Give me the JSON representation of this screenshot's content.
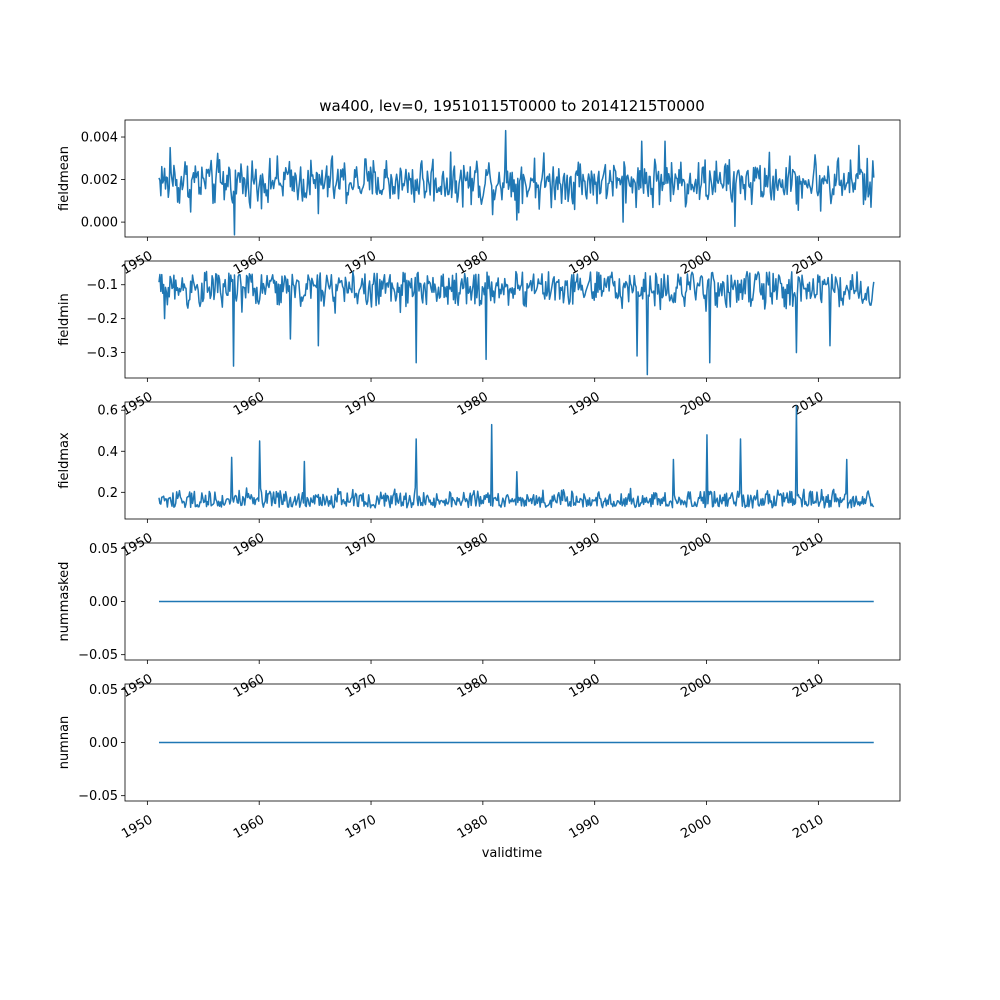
{
  "figure": {
    "title": "wa400, lev=0, 19510115T0000 to 20141215T0000",
    "xlabel": "validtime",
    "line_color": "#1f77b4"
  },
  "chart_data": [
    {
      "type": "line",
      "ylabel": "fieldmean",
      "x_start": "1951-01-15",
      "x_end": "2014-12-15",
      "xlim": [
        1948.0,
        2017.3
      ],
      "ylim": [
        -0.0007,
        0.0048
      ],
      "yticks": [
        0.0,
        0.002,
        0.004
      ],
      "ytick_labels": [
        "0.000",
        "0.002",
        "0.004"
      ],
      "xticks": [
        1950,
        1960,
        1970,
        1980,
        1990,
        2000,
        2010
      ],
      "xtick_labels": [
        "1950",
        "1960",
        "1970",
        "1980",
        "1990",
        "2000",
        "2010"
      ],
      "baseline": 0.0019,
      "spread": 0.00065,
      "spikes": [
        [
          1952.0,
          0.0035
        ],
        [
          1957.8,
          -0.0006
        ],
        [
          1965.3,
          0.0004
        ],
        [
          1982.0,
          0.0043
        ],
        [
          1983.0,
          0.0001
        ],
        [
          1992.5,
          0.0
        ],
        [
          1994.2,
          0.0038
        ],
        [
          1996.3,
          0.0038
        ],
        [
          2002.5,
          -0.0002
        ],
        [
          2013.6,
          0.0036
        ],
        [
          2014.7,
          0.0007
        ]
      ]
    },
    {
      "type": "line",
      "ylabel": "fieldmin",
      "x_start": "1951-01-15",
      "x_end": "2014-12-15",
      "xlim": [
        1948.0,
        2017.3
      ],
      "ylim": [
        -0.375,
        -0.03
      ],
      "yticks": [
        -0.3,
        -0.2,
        -0.1
      ],
      "ytick_labels": [
        "−0.3",
        "−0.2",
        "−0.1"
      ],
      "xticks": [
        1950,
        1960,
        1970,
        1980,
        1990,
        2000,
        2010
      ],
      "xtick_labels": [
        "1950",
        "1960",
        "1970",
        "1980",
        "1990",
        "2000",
        "2010"
      ],
      "baseline": -0.11,
      "spread": 0.035,
      "spikes": [
        [
          1951.5,
          -0.2
        ],
        [
          1957.7,
          -0.34
        ],
        [
          1962.8,
          -0.26
        ],
        [
          1965.3,
          -0.28
        ],
        [
          1974.0,
          -0.33
        ],
        [
          1980.3,
          -0.32
        ],
        [
          1993.8,
          -0.31
        ],
        [
          1994.7,
          -0.365
        ],
        [
          2000.3,
          -0.33
        ],
        [
          2008.0,
          -0.3
        ],
        [
          2011.0,
          -0.28
        ],
        [
          2014.6,
          -0.16
        ]
      ]
    },
    {
      "type": "line",
      "ylabel": "fieldmax",
      "x_start": "1951-01-15",
      "x_end": "2014-12-15",
      "xlim": [
        1948.0,
        2017.3
      ],
      "ylim": [
        0.07,
        0.64
      ],
      "yticks": [
        0.2,
        0.4,
        0.6
      ],
      "ytick_labels": [
        "0.2",
        "0.4",
        "0.6"
      ],
      "xticks": [
        1950,
        1960,
        1970,
        1980,
        1990,
        2000,
        2010
      ],
      "xtick_labels": [
        "1950",
        "1960",
        "1970",
        "1980",
        "1990",
        "2000",
        "2010"
      ],
      "baseline": 0.16,
      "spread": 0.03,
      "spikes": [
        [
          1957.5,
          0.37
        ],
        [
          1960.0,
          0.45
        ],
        [
          1964.0,
          0.35
        ],
        [
          1974.0,
          0.46
        ],
        [
          1980.8,
          0.53
        ],
        [
          1983.0,
          0.3
        ],
        [
          1997.0,
          0.36
        ],
        [
          2000.0,
          0.48
        ],
        [
          2003.0,
          0.46
        ],
        [
          2008.0,
          0.62
        ],
        [
          2012.5,
          0.36
        ]
      ]
    },
    {
      "type": "line",
      "ylabel": "nummasked",
      "x_start": "1951-01-15",
      "x_end": "2014-12-15",
      "xlim": [
        1948.0,
        2017.3
      ],
      "ylim": [
        -0.055,
        0.055
      ],
      "yticks": [
        -0.05,
        0.0,
        0.05
      ],
      "ytick_labels": [
        "−0.05",
        "0.00",
        "0.05"
      ],
      "xticks": [
        1950,
        1960,
        1970,
        1980,
        1990,
        2000,
        2010
      ],
      "xtick_labels": [
        "1950",
        "1960",
        "1970",
        "1980",
        "1990",
        "2000",
        "2010"
      ],
      "y_values": [
        0,
        0
      ]
    },
    {
      "type": "line",
      "ylabel": "numnan",
      "x_start": "1951-01-15",
      "x_end": "2014-12-15",
      "xlim": [
        1948.0,
        2017.3
      ],
      "ylim": [
        -0.055,
        0.055
      ],
      "yticks": [
        -0.05,
        0.0,
        0.05
      ],
      "ytick_labels": [
        "−0.05",
        "0.00",
        "0.05"
      ],
      "xticks": [
        1950,
        1960,
        1970,
        1980,
        1990,
        2000,
        2010
      ],
      "xtick_labels": [
        "1950",
        "1960",
        "1970",
        "1980",
        "1990",
        "2000",
        "2010"
      ],
      "y_values": [
        0,
        0
      ]
    }
  ]
}
